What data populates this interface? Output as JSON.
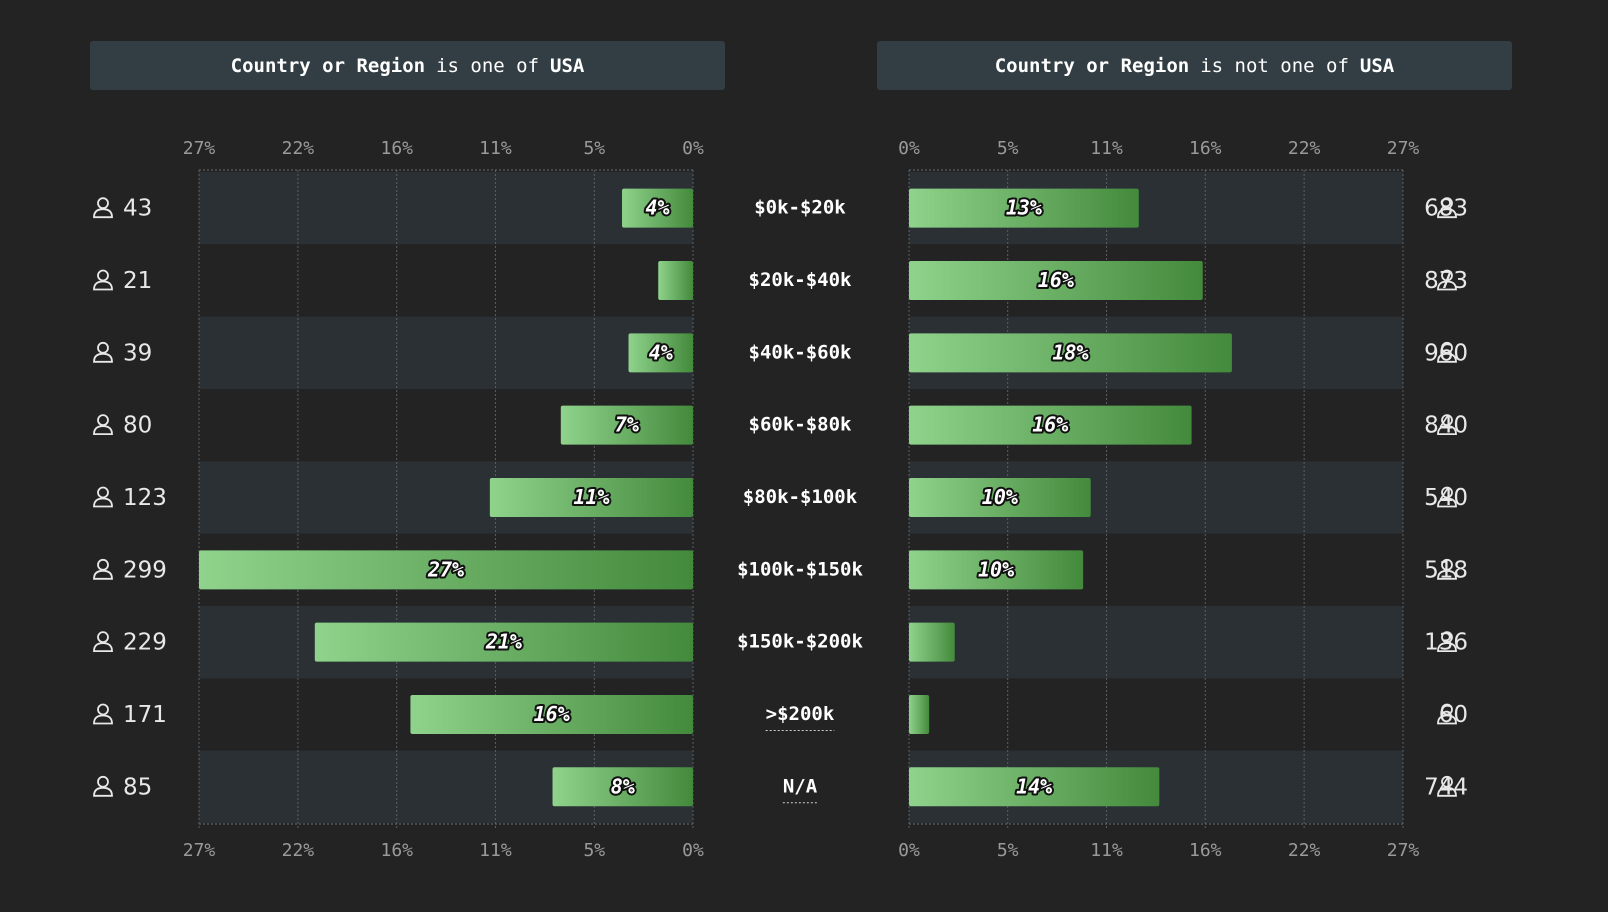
{
  "chart_data": {
    "type": "butterfly",
    "categories": [
      "$0k-$20k",
      "$20k-$40k",
      "$40k-$60k",
      "$60k-$80k",
      "$80k-$100k",
      "$100k-$150k",
      "$150k-$200k",
      ">$200k",
      "N/A"
    ],
    "xlim": [
      0,
      27.43
    ],
    "xticks": [
      {
        "value": 0,
        "label": "0%"
      },
      {
        "value": 5.48,
        "label": "5%"
      },
      {
        "value": 10.97,
        "label": "11%"
      },
      {
        "value": 16.45,
        "label": "16%"
      },
      {
        "value": 21.94,
        "label": "22%"
      },
      {
        "value": 27.43,
        "label": "27%"
      }
    ],
    "grid": true,
    "series": [
      {
        "filter": {
          "field": "Country or Region",
          "op": "is one of",
          "value": "USA"
        },
        "colors": [
          "#8fd38c",
          "#448a3c"
        ],
        "values": [
          3.94,
          1.93,
          3.58,
          7.34,
          11.28,
          27.43,
          21.0,
          15.69,
          7.8
        ],
        "value_labels": [
          "4%",
          null,
          "4%",
          "7%",
          "11%",
          "27%",
          "21%",
          "16%",
          "8%"
        ],
        "counts": [
          43,
          21,
          39,
          80,
          123,
          299,
          229,
          171,
          85
        ]
      },
      {
        "filter": {
          "field": "Country or Region",
          "op": "is not one of",
          "value": "USA"
        },
        "colors": [
          "#8fd38c",
          "#448a3c"
        ],
        "values": [
          12.76,
          16.31,
          17.93,
          15.69,
          10.09,
          9.67,
          2.54,
          1.12,
          13.9
        ],
        "value_labels": [
          "13%",
          "16%",
          "18%",
          "16%",
          "10%",
          "10%",
          null,
          null,
          "14%"
        ],
        "counts": [
          683,
          873,
          960,
          840,
          540,
          518,
          136,
          60,
          744
        ]
      }
    ]
  }
}
